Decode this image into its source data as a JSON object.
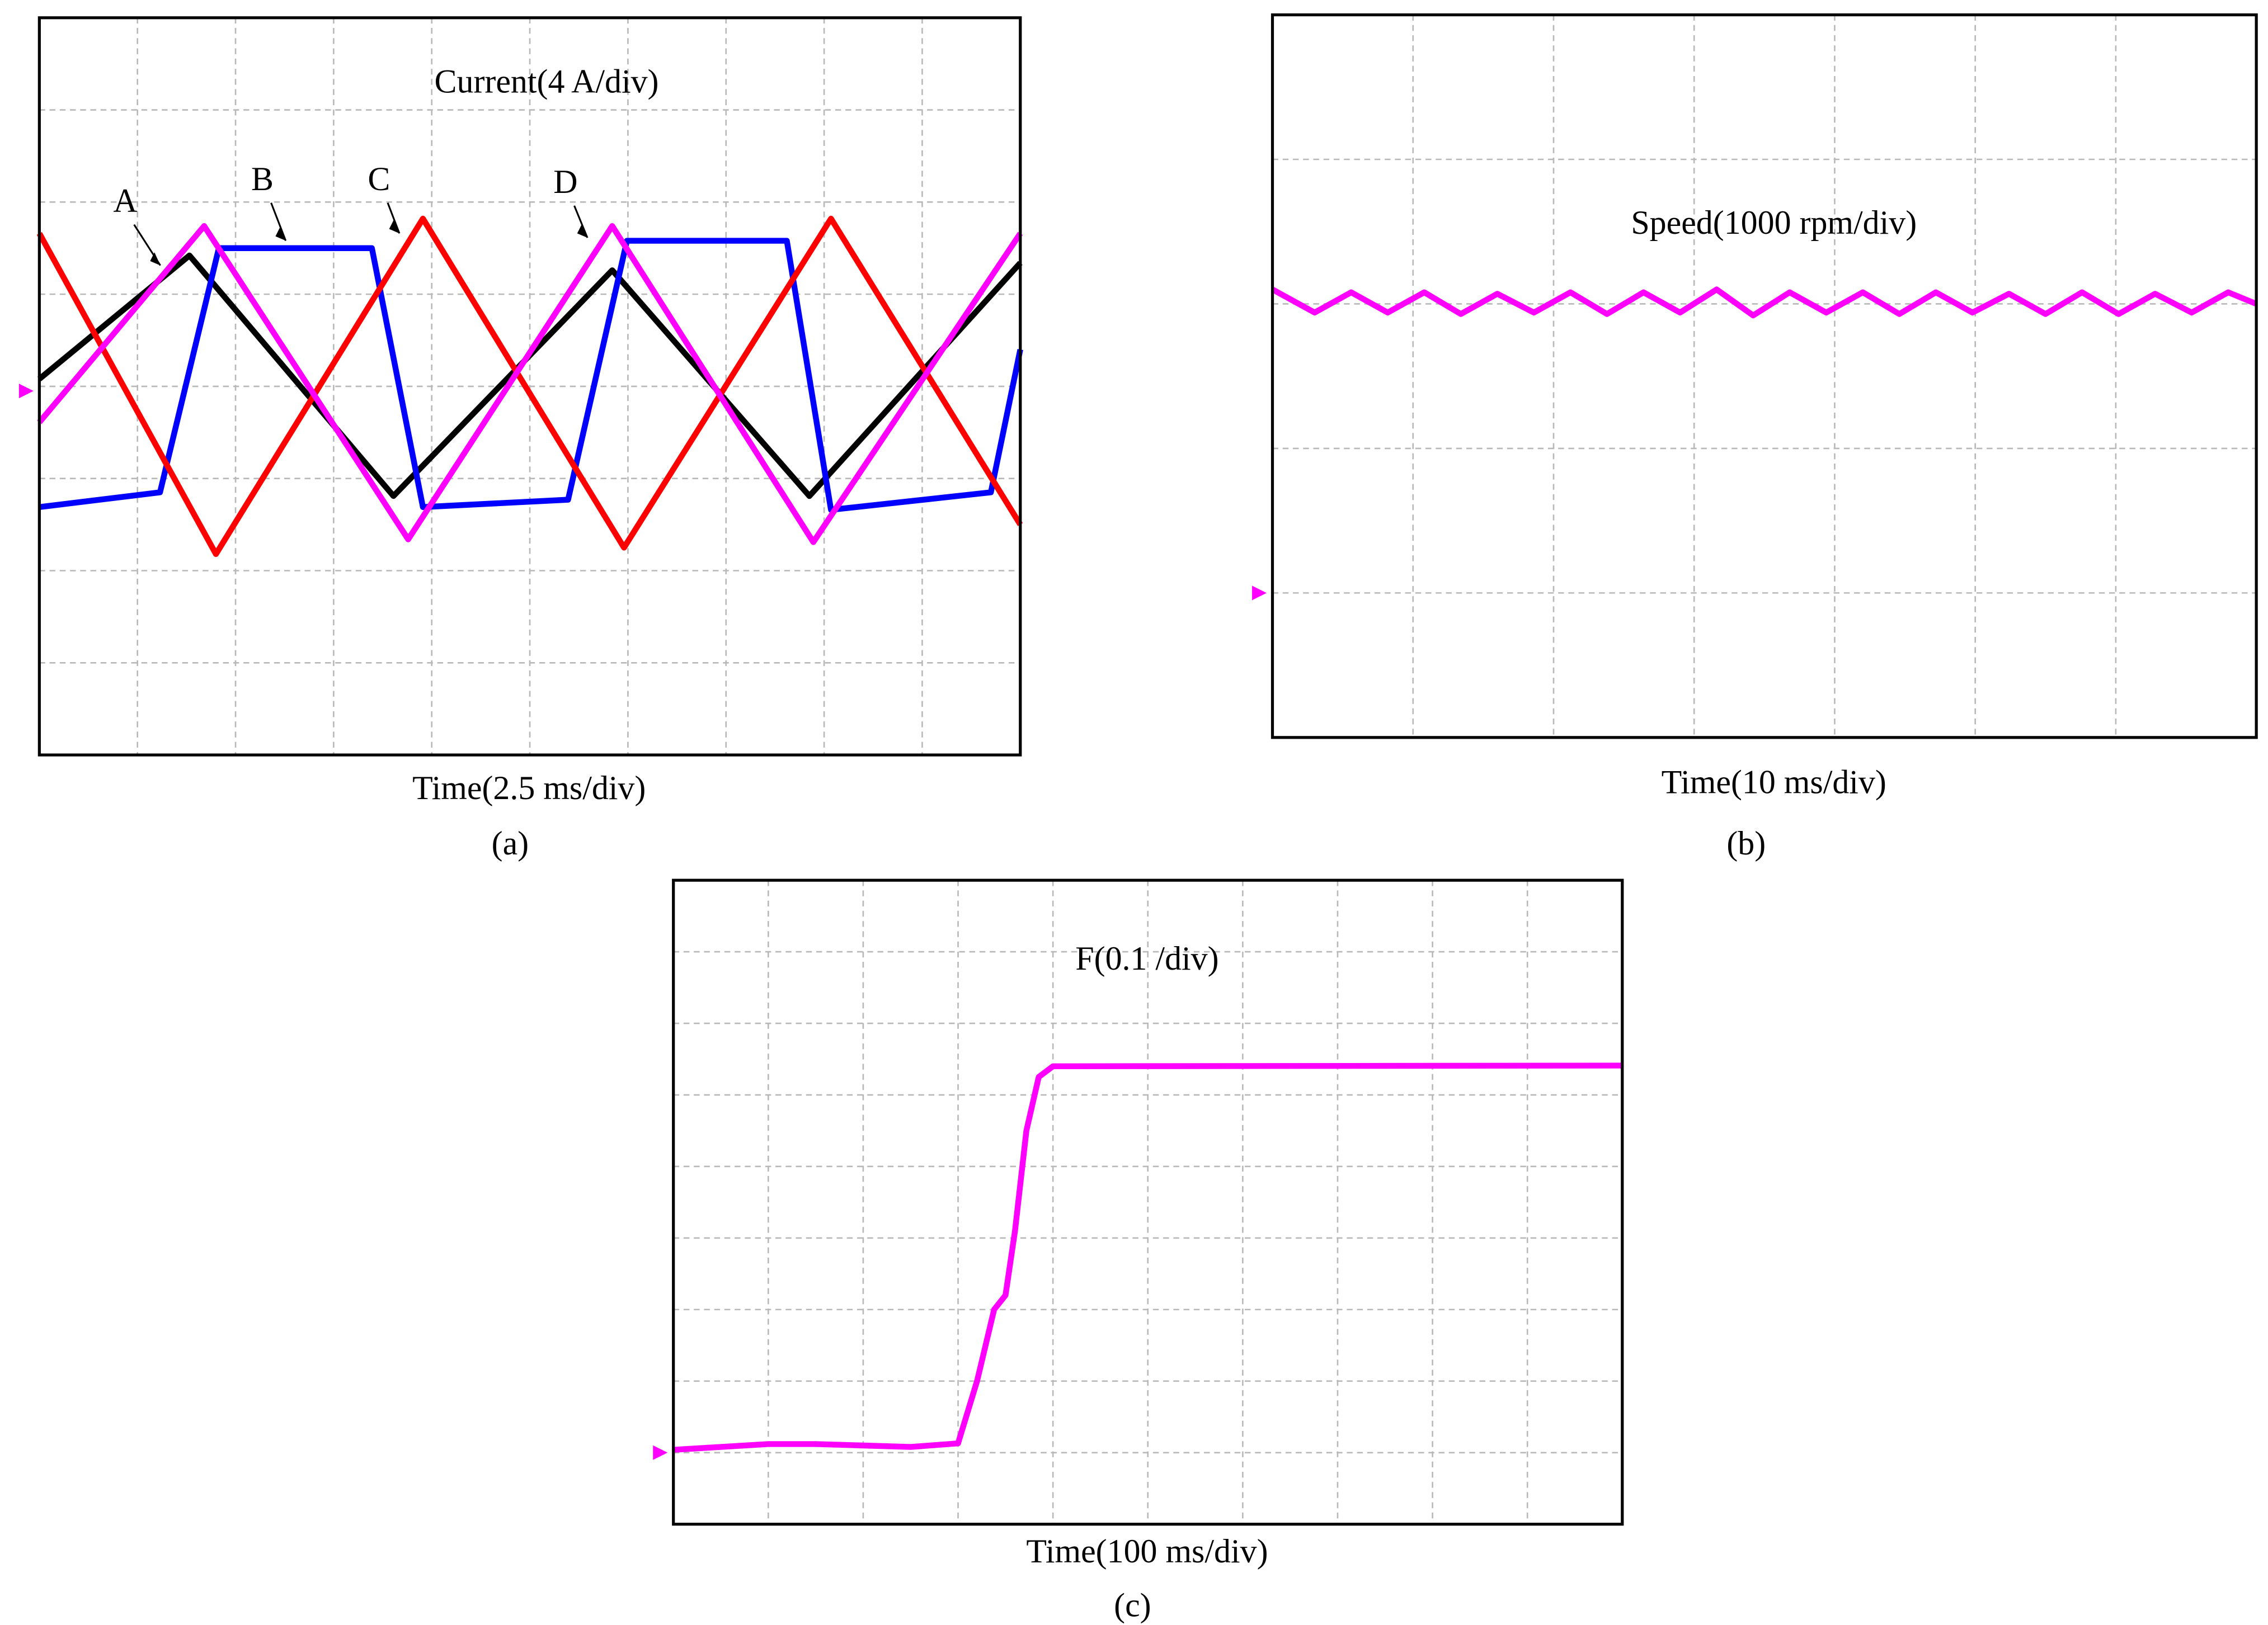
{
  "chart_data": [
    {
      "type": "line",
      "title": "Current(4 A/div)",
      "x_label": "Time(2.5 ms/div)",
      "panel_label": "(a)",
      "xlim": [
        0,
        10
      ],
      "ylim": [
        0,
        8
      ],
      "xticks": [
        0,
        1,
        2,
        3,
        4,
        5,
        6,
        7,
        8,
        9,
        10
      ],
      "yticks": [
        0,
        1,
        2,
        3,
        4,
        5,
        6,
        7,
        8
      ],
      "grid": true,
      "ground_level": 3.95,
      "series": [
        {
          "name": "A",
          "color": "#000000",
          "x": [
            0,
            1.53,
            3.61,
            5.84,
            7.85,
            10
          ],
          "values": [
            4.08,
            5.42,
            2.81,
            5.26,
            2.81,
            5.34
          ]
        },
        {
          "name": "B",
          "color": "#0000ff",
          "x": [
            0,
            1.23,
            1.83,
            3.39,
            3.91,
            5.39,
            5.99,
            7.62,
            8.07,
            9.7,
            10
          ],
          "values": [
            2.69,
            2.85,
            5.5,
            5.5,
            2.69,
            2.77,
            5.58,
            5.58,
            2.66,
            2.85,
            4.4
          ]
        },
        {
          "name": "C",
          "color": "#ff0000",
          "x": [
            0,
            1.8,
            3.91,
            5.96,
            8.07,
            10
          ],
          "values": [
            5.66,
            2.18,
            5.82,
            2.25,
            5.82,
            2.5
          ]
        },
        {
          "name": "D",
          "color": "#ff00ff",
          "x": [
            0,
            1.68,
            3.76,
            5.84,
            7.89,
            10
          ],
          "values": [
            3.61,
            5.74,
            2.34,
            5.74,
            2.31,
            5.66
          ]
        }
      ]
    },
    {
      "type": "line",
      "title": "Speed(1000 rpm/div)",
      "x_label": "Time(10 ms/div)",
      "panel_label": "(b)",
      "xlim": [
        0,
        7
      ],
      "ylim": [
        0,
        5
      ],
      "xticks": [
        0,
        1,
        2,
        3,
        4,
        5,
        6,
        7
      ],
      "yticks": [
        0,
        1,
        2,
        3,
        4,
        5
      ],
      "grid": true,
      "ground_level": 1,
      "series": [
        {
          "color": "#ff00ff",
          "x": [
            0,
            0.3,
            0.56,
            0.82,
            1.08,
            1.34,
            1.6,
            1.86,
            2.12,
            2.38,
            2.64,
            2.9,
            3.16,
            3.42,
            3.68,
            3.94,
            4.2,
            4.46,
            4.72,
            4.98,
            5.24,
            5.5,
            5.76,
            6.02,
            6.28,
            6.54,
            6.8,
            7
          ],
          "values": [
            3.1,
            2.94,
            3.08,
            2.94,
            3.08,
            2.93,
            3.07,
            2.94,
            3.08,
            2.93,
            3.08,
            2.94,
            3.1,
            2.92,
            3.08,
            2.94,
            3.08,
            2.93,
            3.08,
            2.94,
            3.07,
            2.93,
            3.08,
            2.93,
            3.07,
            2.94,
            3.08,
            3.0
          ]
        }
      ]
    },
    {
      "type": "line",
      "title": "F(0.1 /div)",
      "x_label": "Time(100 ms/div)",
      "panel_label": "(c)",
      "xlim": [
        0,
        10
      ],
      "ylim": [
        0,
        9
      ],
      "xticks": [
        0,
        1,
        2,
        3,
        4,
        5,
        6,
        7,
        8,
        9,
        10
      ],
      "yticks": [
        0,
        1,
        2,
        3,
        4,
        5,
        6,
        7,
        8,
        9
      ],
      "grid": true,
      "ground_level": 1,
      "series": [
        {
          "color": "#ff00ff",
          "x": [
            0,
            0.5,
            1,
            1.5,
            2,
            2.5,
            3,
            3.2,
            3.38,
            3.5,
            3.6,
            3.72,
            3.85,
            4,
            10
          ],
          "values": [
            1.04,
            1.08,
            1.12,
            1.12,
            1.1,
            1.08,
            1.13,
            2.0,
            3.0,
            3.2,
            4.1,
            5.5,
            6.25,
            6.4,
            6.41
          ]
        }
      ]
    }
  ]
}
